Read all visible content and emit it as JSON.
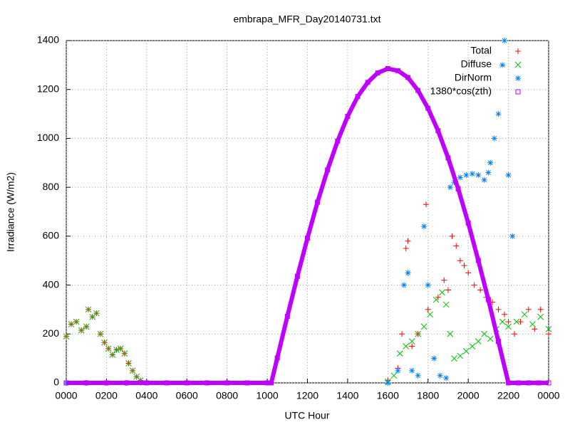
{
  "chart_data": {
    "type": "scatter",
    "title": "embrapa_MFR_Day20140731.txt",
    "x_label": "UTC Hour",
    "y_label": "Irradiance (W/m2)",
    "xlim": [
      0,
      24
    ],
    "ylim": [
      0,
      1400
    ],
    "xticks": [
      {
        "value": 0,
        "label": "0000"
      },
      {
        "value": 2,
        "label": "0200"
      },
      {
        "value": 4,
        "label": "0400"
      },
      {
        "value": 6,
        "label": "0600"
      },
      {
        "value": 8,
        "label": "0800"
      },
      {
        "value": 10,
        "label": "1000"
      },
      {
        "value": 12,
        "label": "1200"
      },
      {
        "value": 14,
        "label": "1400"
      },
      {
        "value": 16,
        "label": "1600"
      },
      {
        "value": 18,
        "label": "1800"
      },
      {
        "value": 20,
        "label": "2000"
      },
      {
        "value": 22,
        "label": "2200"
      },
      {
        "value": 24,
        "label": "0000"
      }
    ],
    "yticks": [
      0,
      200,
      400,
      600,
      800,
      1000,
      1200,
      1400
    ],
    "grid": true,
    "legend": "top-right",
    "series": [
      {
        "name": "Total",
        "color": "#ff0000",
        "marker": "plus",
        "x": [
          0,
          0.25,
          0.5,
          0.75,
          1,
          1.1,
          1.3,
          1.5,
          1.7,
          1.9,
          2.1,
          2.3,
          2.5,
          2.7,
          2.9,
          3.1,
          3.3,
          3.5,
          3.7,
          16,
          16.5,
          16.7,
          16.9,
          17,
          17.2,
          17.5,
          17.9,
          18,
          18.5,
          18.8,
          19,
          19.2,
          19.4,
          19.6,
          19.8,
          20,
          20.3,
          20.6,
          20.9,
          21.2,
          21.5,
          21.8,
          22,
          22.3,
          22.6,
          23,
          23.3,
          23.6,
          24
        ],
        "values": [
          190,
          240,
          250,
          215,
          230,
          300,
          270,
          285,
          200,
          165,
          140,
          115,
          135,
          140,
          120,
          80,
          50,
          25,
          10,
          10,
          60,
          200,
          550,
          580,
          150,
          200,
          730,
          300,
          350,
          420,
          380,
          600,
          560,
          500,
          480,
          450,
          400,
          380,
          350,
          330,
          300,
          280,
          250,
          200,
          250,
          300,
          220,
          300,
          200
        ]
      },
      {
        "name": "Diffuse",
        "color": "#00c000",
        "marker": "cross",
        "x": [
          0,
          0.25,
          0.5,
          0.75,
          1,
          1.1,
          1.3,
          1.5,
          1.7,
          1.9,
          2.1,
          2.3,
          2.5,
          2.7,
          2.9,
          3.1,
          3.3,
          3.5,
          3.7,
          16,
          16.3,
          16.6,
          16.9,
          17.2,
          17.5,
          17.8,
          18.1,
          18.4,
          18.7,
          18.9,
          19.1,
          19.3,
          19.6,
          19.9,
          20.2,
          20.5,
          20.8,
          21.1,
          21.4,
          21.7,
          22,
          22.4,
          22.8,
          23.2,
          23.6,
          24
        ],
        "values": [
          190,
          240,
          250,
          215,
          230,
          300,
          270,
          285,
          200,
          165,
          140,
          115,
          135,
          140,
          120,
          80,
          50,
          25,
          10,
          5,
          30,
          120,
          150,
          170,
          200,
          230,
          280,
          340,
          370,
          320,
          200,
          100,
          110,
          130,
          150,
          170,
          200,
          180,
          220,
          250,
          230,
          250,
          280,
          240,
          270,
          220
        ]
      },
      {
        "name": "DirNorm",
        "color": "#0080ff",
        "marker": "star",
        "x": [
          0,
          1,
          2,
          3,
          3.7,
          16,
          16.5,
          16.8,
          17,
          17.2,
          17.5,
          17.8,
          18,
          18.3,
          18.6,
          18.9,
          19.1,
          19.3,
          19.6,
          19.9,
          20.2,
          20.5,
          20.8,
          21,
          21.1,
          21.3,
          21.5,
          21.7,
          21.8,
          22,
          22.2
        ],
        "values": [
          0,
          0,
          0,
          0,
          0,
          0,
          50,
          400,
          450,
          50,
          30,
          640,
          400,
          100,
          30,
          20,
          800,
          820,
          840,
          850,
          855,
          850,
          830,
          860,
          900,
          1000,
          1100,
          1300,
          1400,
          850,
          600
        ]
      },
      {
        "name": "1380*cos(zth)",
        "color": "#c000ff",
        "marker": "square",
        "x": [
          0,
          1,
          2,
          3,
          4,
          5,
          6,
          7,
          8,
          9,
          10,
          10.2,
          10.5,
          11,
          11.5,
          12,
          12.5,
          13,
          13.5,
          14,
          14.5,
          15,
          15.5,
          16,
          16.5,
          17,
          17.5,
          18,
          18.5,
          19,
          19.5,
          20,
          20.5,
          21,
          21.5,
          22,
          22.5,
          23,
          23.5,
          24
        ],
        "values": [
          0,
          0,
          0,
          0,
          0,
          0,
          0,
          0,
          0,
          0,
          0,
          0,
          102,
          272,
          436,
          592,
          739,
          871,
          989,
          1090,
          1171,
          1229,
          1268,
          1285,
          1277,
          1249,
          1196,
          1123,
          1031,
          920,
          794,
          654,
          501,
          341,
          170,
          0,
          0,
          0,
          0,
          0
        ]
      }
    ]
  }
}
